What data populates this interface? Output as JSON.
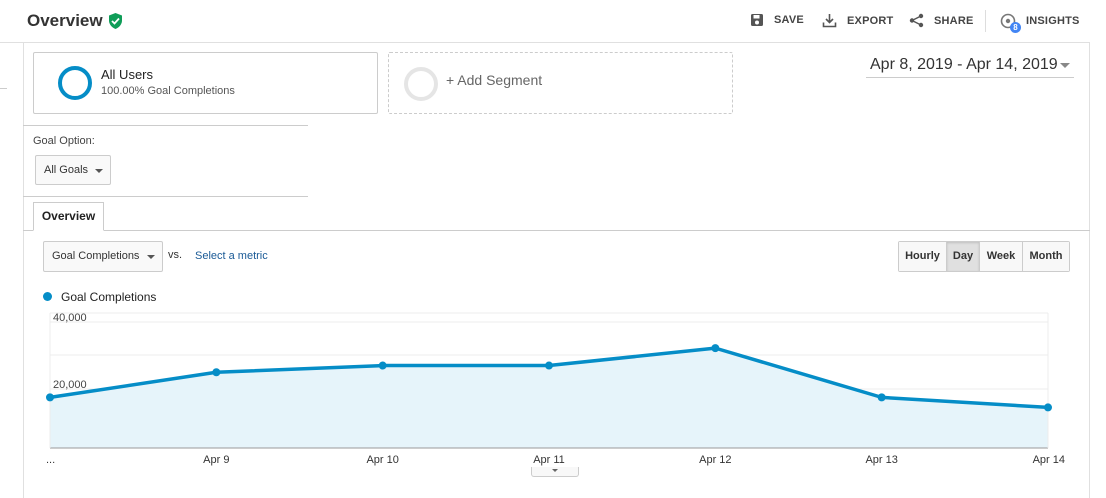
{
  "header": {
    "title": "Overview",
    "actions": [
      {
        "label": "SAVE",
        "icon": "save-icon"
      },
      {
        "label": "EXPORT",
        "icon": "export-icon"
      },
      {
        "label": "SHARE",
        "icon": "share-icon"
      },
      {
        "label": "INSIGHTS",
        "icon": "insights-icon",
        "badge": "8"
      }
    ]
  },
  "segments": {
    "all_users": {
      "name": "All Users",
      "sub": "100.00% Goal Completions"
    },
    "add_segment": "+ Add Segment"
  },
  "date_range": "Apr 8, 2019 - Apr 14, 2019",
  "goal_option": {
    "label": "Goal Option:",
    "selected": "All Goals"
  },
  "tabs": [
    "Overview"
  ],
  "metric": {
    "selected": "Goal Completions",
    "vs": "vs.",
    "select_metric": "Select a metric"
  },
  "periods": [
    {
      "label": "Hourly",
      "active": false
    },
    {
      "label": "Day",
      "active": true
    },
    {
      "label": "Week",
      "active": false
    },
    {
      "label": "Month",
      "active": false
    }
  ],
  "colors": {
    "accent": "#058dc7",
    "fill": "#e6f4fa",
    "verified": "#0f9d58"
  },
  "chart_data": {
    "type": "area",
    "legend": "Goal Completions",
    "x": [
      "...",
      "Apr 9",
      "Apr 10",
      "Apr 11",
      "Apr 12",
      "Apr 13",
      "Apr 14"
    ],
    "series": [
      {
        "name": "Goal Completions",
        "values": [
          17500,
          25000,
          27000,
          27000,
          32200,
          17500,
          14500
        ]
      }
    ],
    "y_ticks": [
      "40,000",
      "20,000"
    ],
    "ylim": [
      0,
      40000
    ],
    "grid": true
  }
}
